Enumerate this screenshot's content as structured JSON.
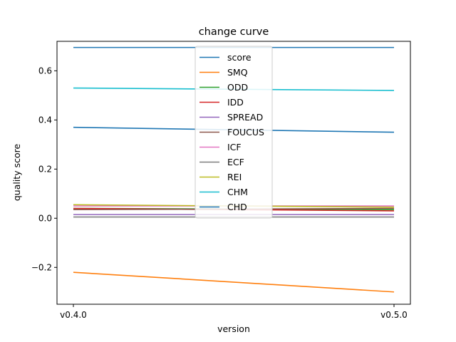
{
  "chart_data": {
    "type": "line",
    "title": "change curve",
    "xlabel": "version",
    "ylabel": "quality score",
    "categories": [
      "v0.4.0",
      "v0.5.0"
    ],
    "ylim": [
      -0.35,
      0.72
    ],
    "yticks": [
      -0.2,
      0.0,
      0.2,
      0.4,
      0.6
    ],
    "ytick_labels": [
      "−0.2",
      "0.0",
      "0.2",
      "0.4",
      "0.6"
    ],
    "grid": false,
    "legend_position": "top-center",
    "series": [
      {
        "name": "score",
        "color": "#1f77b4",
        "values": [
          0.37,
          0.35
        ]
      },
      {
        "name": "SMQ",
        "color": "#ff7f0e",
        "values": [
          -0.22,
          -0.3
        ]
      },
      {
        "name": "ODD",
        "color": "#2ca02c",
        "values": [
          0.04,
          0.035
        ]
      },
      {
        "name": "IDD",
        "color": "#d62728",
        "values": [
          0.04,
          0.03
        ]
      },
      {
        "name": "SPREAD",
        "color": "#9467bd",
        "values": [
          0.015,
          0.015
        ]
      },
      {
        "name": "FOUCUS",
        "color": "#8c564b",
        "values": [
          0.035,
          0.04
        ]
      },
      {
        "name": "ICF",
        "color": "#e377c2",
        "values": [
          0.05,
          0.05
        ]
      },
      {
        "name": "ECF",
        "color": "#7f7f7f",
        "values": [
          0.005,
          0.005
        ]
      },
      {
        "name": "REI",
        "color": "#bcbd22",
        "values": [
          0.055,
          0.045
        ]
      },
      {
        "name": "CHM",
        "color": "#17becf",
        "values": [
          0.53,
          0.52
        ]
      },
      {
        "name": "CHD",
        "color": "#1f77b4",
        "values": [
          0.695,
          0.695
        ]
      }
    ]
  }
}
